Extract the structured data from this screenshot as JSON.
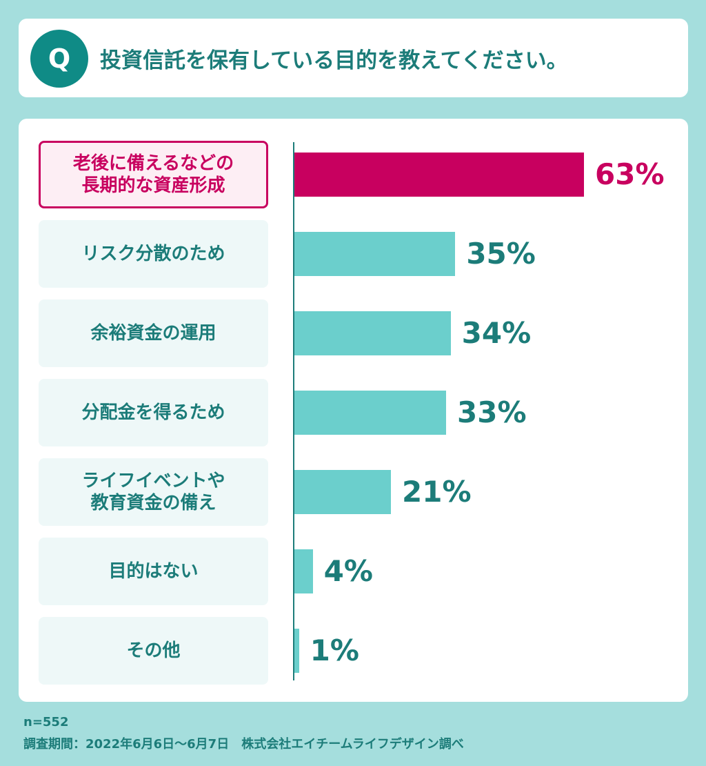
{
  "question": {
    "badge": "Q",
    "text": "投資信託を保有している目的を教えてください。"
  },
  "chart_data": {
    "type": "bar",
    "orientation": "horizontal",
    "categories": [
      "老後に備えるなどの\n長期的な資産形成",
      "リスク分散のため",
      "余裕資金の運用",
      "分配金を得るため",
      "ライフイベントや\n教育資金の備え",
      "目的はない",
      "その他"
    ],
    "values": [
      63,
      35,
      34,
      33,
      21,
      4,
      1
    ],
    "value_labels": [
      "63%",
      "35%",
      "34%",
      "33%",
      "21%",
      "4%",
      "1%"
    ],
    "highlight_index": 0,
    "unit": "%",
    "xlim": [
      0,
      100
    ],
    "grid": false
  },
  "colors": {
    "background": "#a5dedd",
    "highlight": "#c8005f",
    "bar": "#6bcfcc",
    "text": "#1c7c79"
  },
  "footer": {
    "sample": "n=552",
    "source": "調査期間：2022年6月6日〜6月7日　株式会社エイチームライフデザイン調べ"
  }
}
